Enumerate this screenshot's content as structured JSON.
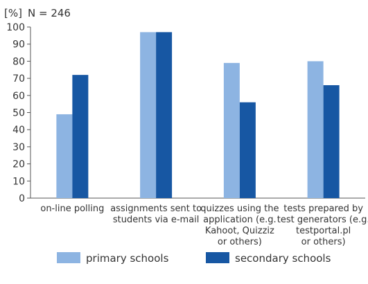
{
  "chart_data": {
    "type": "bar",
    "unit_label": "[%]",
    "note": "N = 246",
    "ylim": [
      0,
      100
    ],
    "yticks": [
      0,
      10,
      20,
      30,
      40,
      50,
      60,
      70,
      80,
      90,
      100
    ],
    "grid": false,
    "legend_position": "bottom",
    "categories": [
      [
        "on-line polling"
      ],
      [
        "assignments sent to",
        "students via e-mail"
      ],
      [
        "quizzes using the",
        "application (e.g.",
        "Kahoot, Quizziz",
        "or others)"
      ],
      [
        "tests prepared by",
        "test generators (e.g.",
        "testportal.pl",
        "or others)"
      ]
    ],
    "series": [
      {
        "name": "primary schools",
        "values": [
          49,
          97,
          79,
          80
        ]
      },
      {
        "name": "secondary schools",
        "values": [
          72,
          97,
          56,
          66
        ]
      }
    ]
  },
  "colors": {
    "primary": "#8db4e2",
    "secondary": "#1757a3",
    "axis": "#555555"
  }
}
